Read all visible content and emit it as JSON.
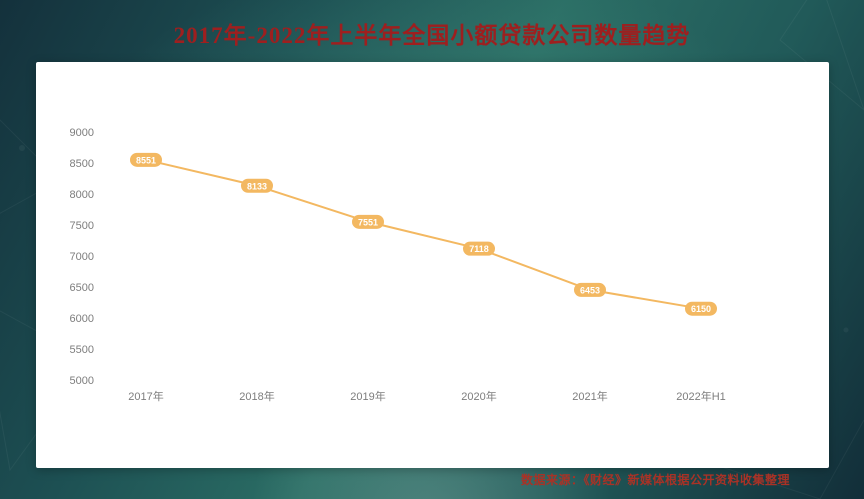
{
  "title": "2017年-2022年上半年全国小额贷款公司数量趋势",
  "source": "数据来源：《财经》新媒体根据公开资料收集整理",
  "colors": {
    "title_text": "#9e1f1f",
    "source_text": "#a93226",
    "card_bg": "#ffffff",
    "line": "#f3b861",
    "label_bg": "#f3b861",
    "label_text": "#ffffff",
    "axis_text": "#7d7d7d",
    "background_teal": "#2b6e65"
  },
  "chart_data": {
    "type": "line",
    "title": "2017年-2022年上半年全国小额贷款公司数量趋势",
    "categories": [
      "2017年",
      "2018年",
      "2019年",
      "2020年",
      "2021年",
      "2022年H1"
    ],
    "values": [
      8551,
      8133,
      7551,
      7118,
      6453,
      6150
    ],
    "xlabel": "",
    "ylabel": "",
    "ylim": [
      5000,
      9000
    ],
    "yticks": [
      5000,
      5500,
      6000,
      6500,
      7000,
      7500,
      8000,
      8500,
      9000
    ],
    "grid": false,
    "legend": false,
    "point_labels_visible": true
  }
}
